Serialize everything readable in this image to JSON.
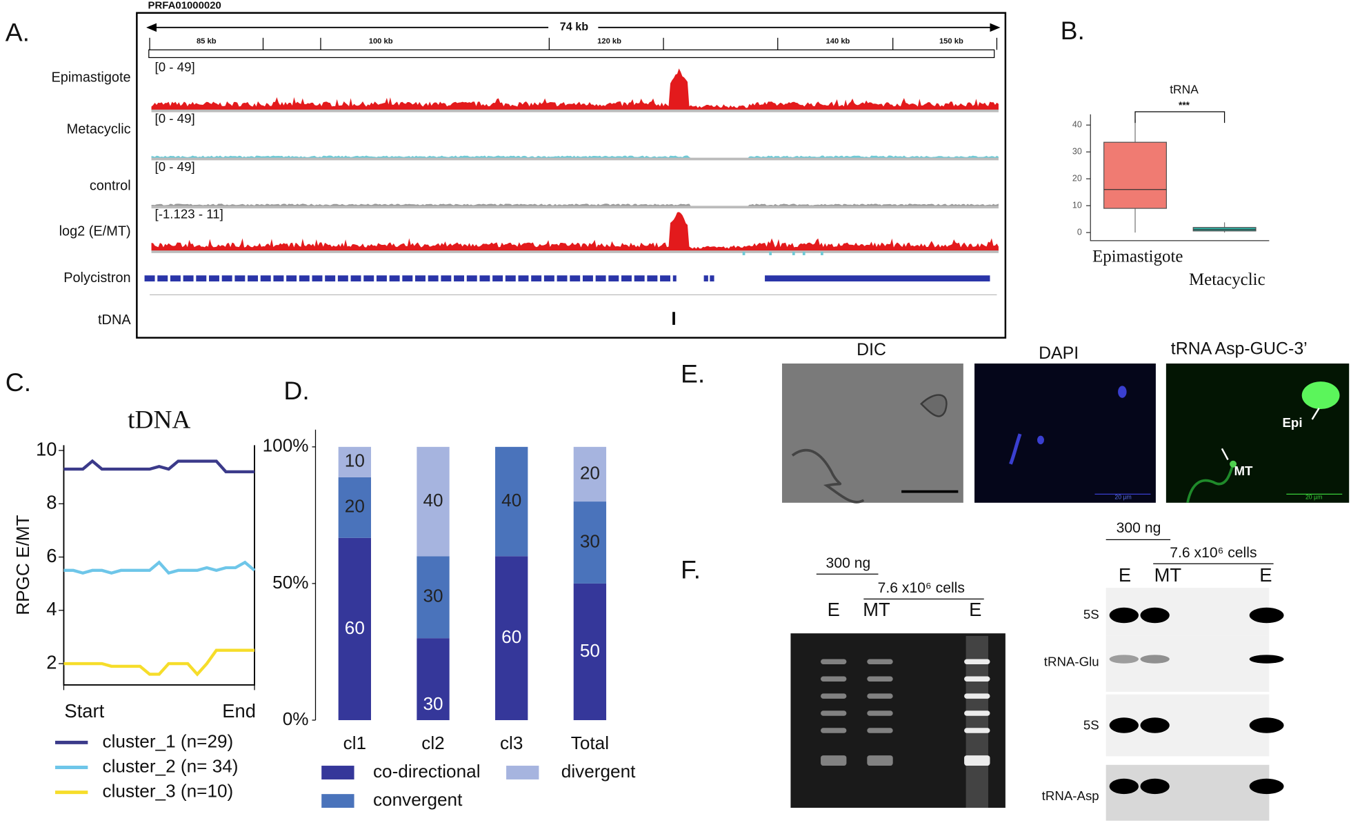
{
  "panel_labels": {
    "a": "A.",
    "b": "B.",
    "c": "C.",
    "d": "D.",
    "e": "E.",
    "f": "F."
  },
  "genome_browser": {
    "contig": "PRFA01000020",
    "span": "74 kb",
    "ruler_labels": [
      "85 kb",
      "100 kb",
      "120 kb",
      "140 kb",
      "150 kb"
    ],
    "tracks": [
      {
        "name": "Epimastigote",
        "range": "[0 - 49]"
      },
      {
        "name": "Metacyclic",
        "range": "[0 - 49]"
      },
      {
        "name": "control",
        "range": "[0 - 49]"
      },
      {
        "name": "log2 (E/MT)",
        "range": "[-1.123 - 11]"
      }
    ],
    "annotation_tracks": [
      "Polycistron",
      "tDNA"
    ]
  },
  "chart_data": [
    {
      "type": "box",
      "title": "tRNA",
      "annotation": "***",
      "categories": [
        "Epimastigote",
        "Metacyclic"
      ],
      "boxes": [
        {
          "whisker_low": 0,
          "q1": 9,
          "median": 16,
          "q3": 33.6,
          "whisker_high": 42,
          "color": "#f07b72"
        },
        {
          "whisker_low": 0,
          "q1": 0.6,
          "median": 1.1,
          "q3": 1.9,
          "whisker_high": 3.8,
          "color": "#2bb3a6"
        }
      ],
      "ylim": [
        -3,
        44
      ],
      "yticks": [
        0,
        10,
        20,
        30,
        40
      ]
    },
    {
      "type": "line",
      "title": "tDNA",
      "y_label": "RPGC E/MT",
      "x": [
        0,
        1,
        2,
        3,
        4,
        5,
        6,
        7,
        8,
        9,
        10,
        11,
        12,
        13,
        14,
        15,
        16,
        17,
        18,
        19,
        20
      ],
      "xlim": [
        0,
        20
      ],
      "xticks": [
        {
          "value": 0,
          "label": "Start"
        },
        {
          "value": 20,
          "label": "End"
        }
      ],
      "ylim": [
        1.2,
        10.2
      ],
      "yticks": [
        2,
        4,
        6,
        8,
        10
      ],
      "series": [
        {
          "name": "cluster_1 (n=29)",
          "color": "#3b3a8a",
          "values": [
            9.3,
            9.3,
            9.3,
            9.6,
            9.3,
            9.3,
            9.3,
            9.3,
            9.3,
            9.3,
            9.4,
            9.3,
            9.6,
            9.6,
            9.6,
            9.6,
            9.6,
            9.2,
            9.2,
            9.2,
            9.2
          ]
        },
        {
          "name": "cluster_2 (n= 34)",
          "color": "#6ec6e9",
          "values": [
            5.5,
            5.5,
            5.4,
            5.5,
            5.5,
            5.4,
            5.5,
            5.5,
            5.5,
            5.5,
            5.8,
            5.4,
            5.5,
            5.5,
            5.5,
            5.6,
            5.5,
            5.6,
            5.6,
            5.8,
            5.5
          ]
        },
        {
          "name": "cluster_3 (n=10)",
          "color": "#f6dd2a",
          "values": [
            2.0,
            2.0,
            2.0,
            2.0,
            2.0,
            1.9,
            1.9,
            1.9,
            1.9,
            1.6,
            1.6,
            2.0,
            2.0,
            2.0,
            1.6,
            2.0,
            2.5,
            2.5,
            2.5,
            2.5,
            2.5
          ]
        }
      ]
    },
    {
      "type": "stacked_bar",
      "categories": [
        "cl1",
        "cl2",
        "cl3",
        "Total"
      ],
      "ylim": [
        0,
        100
      ],
      "yticks": [
        {
          "value": 0,
          "label": "0%"
        },
        {
          "value": 50,
          "label": "50%"
        },
        {
          "value": 100,
          "label": "100%"
        }
      ],
      "series": [
        {
          "name": "co-directional",
          "color": "#35379a",
          "values": [
            66.7,
            30,
            60,
            50
          ],
          "counts": [
            60,
            30,
            60,
            50
          ]
        },
        {
          "name": "convergent",
          "color": "#4a73bb",
          "values": [
            22.2,
            30,
            40,
            30
          ],
          "counts": [
            20,
            30,
            40,
            30
          ]
        },
        {
          "name": "divergent",
          "color": "#a6b4df",
          "values": [
            11.1,
            40,
            0,
            20
          ],
          "counts": [
            10,
            40,
            null,
            20
          ]
        }
      ]
    }
  ],
  "microscopy": {
    "panels": [
      "DIC",
      "DAPI",
      "tRNA Asp-GUC-3’"
    ],
    "markers": [
      "Epi",
      "MT"
    ],
    "scale_bar": "20 µm"
  },
  "gel": {
    "amount": "300 ng",
    "cells": "7.6 x10⁶ cells",
    "lanes": [
      "E",
      "MT",
      "E"
    ]
  },
  "northern": {
    "amount": "300 ng",
    "cells": "7.6 x10⁶ cells",
    "lanes": [
      "E",
      "MT",
      "E"
    ],
    "probes": [
      "5S",
      "tRNA-Glu",
      "5S",
      "tRNA-Asp"
    ]
  }
}
